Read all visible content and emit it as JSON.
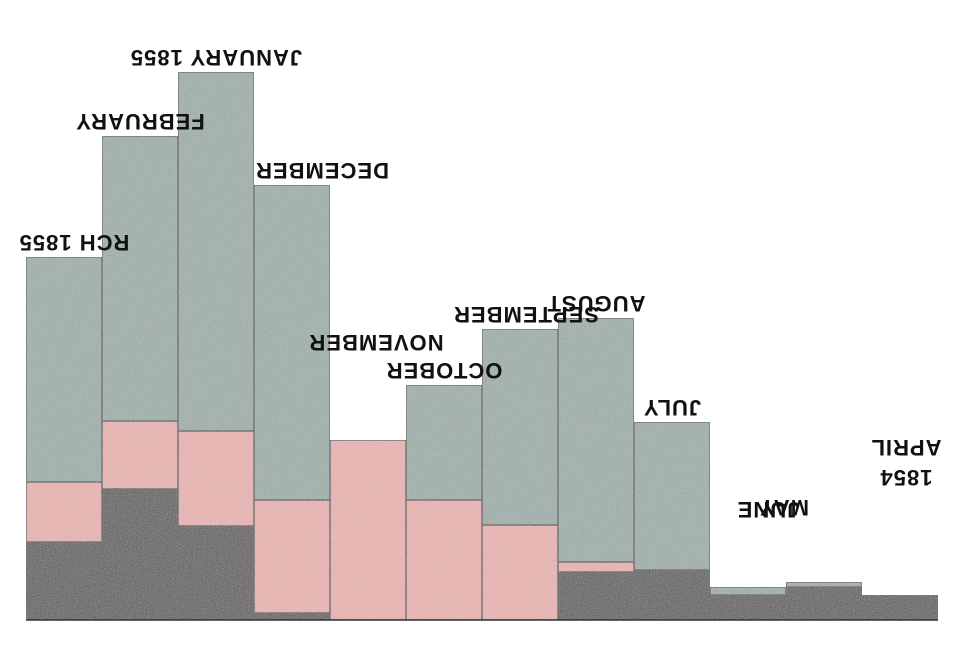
{
  "chart_data": {
    "type": "bar",
    "orientation": "rendered upside-down (rotated 180°)",
    "stacked": true,
    "categories": [
      "APRIL 1854",
      "MAY",
      "JUNE",
      "JULY",
      "AUGUST",
      "SEPTEMBER",
      "OCTOBER",
      "NOVEMBER",
      "DECEMBER",
      "JANUARY 1855",
      "FEBRUARY",
      "RCH 1855"
    ],
    "series": [
      {
        "color": "#5b5657",
        "values": [
          25,
          33,
          25,
          50,
          48,
          0,
          0,
          0,
          7,
          94,
          131,
          78
        ]
      },
      {
        "color": "#f0b5b2",
        "values": [
          0,
          0,
          0,
          0,
          10,
          95,
          120,
          180,
          113,
          95,
          68,
          60
        ]
      },
      {
        "color": "#9fb0aa",
        "values": [
          0,
          5,
          8,
          148,
          244,
          196,
          115,
          0,
          315,
          359,
          285,
          225
        ]
      }
    ],
    "label_lines": {
      "APRIL 1854": [
        "1854",
        "APRIL"
      ]
    },
    "title": "",
    "xlabel": "",
    "ylabel": "",
    "ylim": [
      0,
      560
    ],
    "grid": false,
    "legend": "none"
  }
}
